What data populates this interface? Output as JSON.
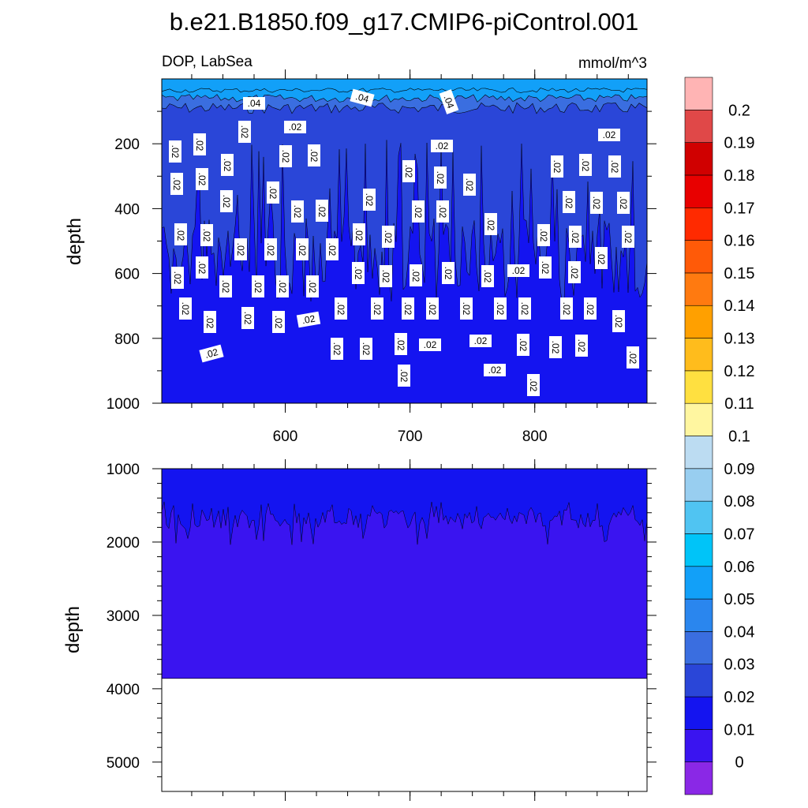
{
  "chart_data": {
    "type": "heatmap",
    "title": "b.e21.B1850.f09_g17.CMIP6-piControl.001",
    "subtitle_left": "DOP, LabSea",
    "subtitle_right": "mmol/m^3",
    "panels": [
      {
        "name": "upper",
        "ylabel": "depth",
        "xlim": [
          501,
          890
        ],
        "ylim": [
          1000,
          0
        ],
        "xticks": [
          600,
          700,
          800
        ],
        "yticks": [
          200,
          400,
          600,
          800,
          1000
        ],
        "contour_labels": [
          ".04",
          ".04",
          ".04",
          ".02"
        ],
        "contour_label_count_note": "many .02 labels on upper panel"
      },
      {
        "name": "lower",
        "ylabel": "depth",
        "ylim": [
          5400,
          1000
        ],
        "yticks": [
          1000,
          2000,
          3000,
          4000,
          5000
        ],
        "ocean_floor_depth": 3860
      }
    ],
    "colorbar": {
      "labels": [
        "0",
        "0.01",
        "0.02",
        "0.03",
        "0.04",
        "0.05",
        "0.06",
        "0.07",
        "0.08",
        "0.09",
        "0.1",
        "0.11",
        "0.12",
        "0.13",
        "0.14",
        "0.15",
        "0.16",
        "0.17",
        "0.18",
        "0.19",
        "0.2"
      ],
      "colors": [
        "#8a28e6",
        "#3a14f0",
        "#1414f0",
        "#2a46d8",
        "#3a6ee0",
        "#2a86ee",
        "#12a0f8",
        "#00c4f8",
        "#50c4f2",
        "#98cef0",
        "#bcdcf2",
        "#fff6a0",
        "#ffe040",
        "#ffbc1c",
        "#ffa000",
        "#ff7a10",
        "#ff5a08",
        "#ff2a00",
        "#e80000",
        "#d00000",
        "#e04848",
        "#ffb4b4"
      ]
    },
    "region_colors": {
      "surface": "#12a0f8",
      "layer_03": "#3a6ee0",
      "upper_main": "#2a46d8",
      "lower_band": "#1414f0",
      "deep": "#3a14f0",
      "land": "#ffffff"
    }
  }
}
